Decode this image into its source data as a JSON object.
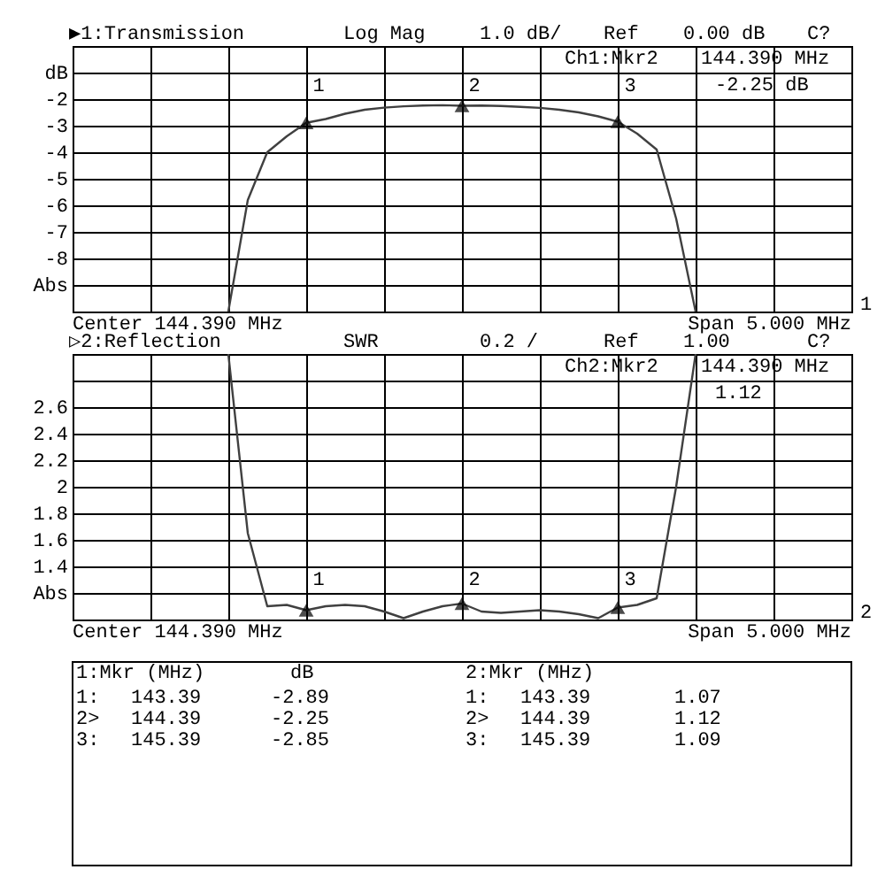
{
  "chart_data": [
    {
      "type": "line",
      "title": "▶1:Transmission",
      "annotations": [
        "Log Mag",
        "1.0 dB/",
        "Ref",
        "0.00 dB",
        "C?",
        "Ch1:Mkr2",
        "144.390 MHz",
        "-2.25 dB",
        "Center 144.390 MHz",
        "Span 5.000 MHz",
        "1"
      ],
      "categories": [
        null,
        null,
        null,
        null,
        null,
        null,
        null,
        null,
        null,
        null,
        null,
        null,
        null,
        null,
        null,
        null,
        null,
        null,
        null,
        null,
        null,
        null,
        null,
        null,
        null,
        null,
        null,
        null,
        null,
        null,
        null,
        null,
        null,
        null,
        null,
        null,
        null,
        null,
        null,
        null,
        null
      ],
      "series": [
        {
          "color": "#404040",
          "values": [
            null,
            null,
            null,
            null,
            null,
            null,
            null,
            null,
            -10,
            -5.8,
            -4.0,
            -3.4,
            -2.89,
            -2.75,
            -2.55,
            -2.4,
            -2.32,
            -2.27,
            -2.24,
            -2.23,
            -2.25,
            -2.24,
            -2.26,
            -2.29,
            -2.33,
            -2.4,
            -2.5,
            -2.65,
            -2.85,
            -3.3,
            -3.9,
            -6.5,
            -10,
            null,
            null,
            null,
            null,
            null,
            null,
            null,
            null
          ]
        },
        {
          "type": "scatter",
          "name": "1",
          "marker": "triangle",
          "color": "#000000",
          "values": [
            null,
            null,
            null,
            null,
            null,
            null,
            null,
            null,
            null,
            null,
            null,
            null,
            -2.89,
            null,
            null,
            null,
            null,
            null,
            null,
            null,
            null,
            null,
            null,
            null,
            null,
            null,
            null,
            null,
            null,
            null,
            null,
            null,
            null,
            null,
            null,
            null,
            null,
            null,
            null,
            null,
            null
          ]
        },
        {
          "type": "scatter",
          "name": "2",
          "marker": "triangle",
          "color": "#000000",
          "values": [
            null,
            null,
            null,
            null,
            null,
            null,
            null,
            null,
            null,
            null,
            null,
            null,
            null,
            null,
            null,
            null,
            null,
            null,
            null,
            null,
            -2.25,
            null,
            null,
            null,
            null,
            null,
            null,
            null,
            null,
            null,
            null,
            null,
            null,
            null,
            null,
            null,
            null,
            null,
            null,
            null,
            null
          ]
        },
        {
          "type": "scatter",
          "name": "3",
          "marker": "triangle",
          "color": "#000000",
          "values": [
            null,
            null,
            null,
            null,
            null,
            null,
            null,
            null,
            null,
            null,
            null,
            null,
            null,
            null,
            null,
            null,
            null,
            null,
            null,
            null,
            null,
            null,
            null,
            null,
            null,
            null,
            null,
            null,
            -2.85,
            null,
            null,
            null,
            null,
            null,
            null,
            null,
            null,
            null,
            null,
            null,
            null
          ]
        }
      ],
      "ylim": [
        -10,
        0
      ],
      "yticks": [
        {
          "value": 0,
          "label": null
        },
        {
          "value": -1,
          "label": "dB"
        },
        -2,
        -3,
        -4,
        -5,
        -6,
        -7,
        -8,
        {
          "value": -9,
          "label": "Abs"
        },
        {
          "value": -10,
          "label": null
        }
      ],
      "tick_labels": "y",
      "grid": true
    },
    {
      "type": "line",
      "title": "▷2:Reflection",
      "annotations": [
        "SWR",
        "0.2 /",
        "Ref",
        "1.00",
        "C?",
        "Ch2:Mkr2",
        "144.390 MHz",
        "1.12",
        "Center 144.390 MHz",
        "Span 5.000 MHz",
        "2"
      ],
      "categories": [
        null,
        null,
        null,
        null,
        null,
        null,
        null,
        null,
        null,
        null,
        null,
        null,
        null,
        null,
        null,
        null,
        null,
        null,
        null,
        null,
        null,
        null,
        null,
        null,
        null,
        null,
        null,
        null,
        null,
        null,
        null,
        null,
        null,
        null,
        null,
        null,
        null,
        null,
        null,
        null,
        null
      ],
      "series": [
        {
          "color": "#404040",
          "values": [
            null,
            null,
            null,
            null,
            null,
            null,
            null,
            null,
            3,
            1.65,
            1.1,
            1.11,
            1.07,
            1.1,
            1.11,
            1.1,
            1.06,
            1.01,
            1.06,
            1.1,
            1.12,
            1.06,
            1.05,
            1.06,
            1.07,
            1.06,
            1.04,
            1.01,
            1.09,
            1.11,
            1.16,
            2.0,
            3,
            null,
            null,
            null,
            null,
            null,
            null,
            null,
            null
          ]
        },
        {
          "type": "scatter",
          "name": "1",
          "marker": "triangle",
          "color": "#000000",
          "values": [
            null,
            null,
            null,
            null,
            null,
            null,
            null,
            null,
            null,
            null,
            null,
            null,
            1.07,
            null,
            null,
            null,
            null,
            null,
            null,
            null,
            null,
            null,
            null,
            null,
            null,
            null,
            null,
            null,
            null,
            null,
            null,
            null,
            null,
            null,
            null,
            null,
            null,
            null,
            null,
            null,
            null
          ]
        },
        {
          "type": "scatter",
          "name": "2",
          "marker": "triangle",
          "color": "#000000",
          "values": [
            null,
            null,
            null,
            null,
            null,
            null,
            null,
            null,
            null,
            null,
            null,
            null,
            null,
            null,
            null,
            null,
            null,
            null,
            null,
            null,
            1.12,
            null,
            null,
            null,
            null,
            null,
            null,
            null,
            null,
            null,
            null,
            null,
            null,
            null,
            null,
            null,
            null,
            null,
            null,
            null,
            null
          ]
        },
        {
          "type": "scatter",
          "name": "3",
          "marker": "triangle",
          "color": "#000000",
          "values": [
            null,
            null,
            null,
            null,
            null,
            null,
            null,
            null,
            null,
            null,
            null,
            null,
            null,
            null,
            null,
            null,
            null,
            null,
            null,
            null,
            null,
            null,
            null,
            null,
            null,
            null,
            null,
            null,
            1.09,
            null,
            null,
            null,
            null,
            null,
            null,
            null,
            null,
            null,
            null,
            null,
            null
          ]
        }
      ],
      "ylim": [
        1,
        3
      ],
      "yticks": [
        {
          "value": 1,
          "label": null
        },
        {
          "value": 1.2,
          "label": "Abs"
        },
        1.4,
        1.6,
        1.8,
        2,
        2.2,
        2.4,
        2.6,
        {
          "value": 2.8,
          "label": null
        },
        {
          "value": 3,
          "label": null
        }
      ],
      "tick_labels": "y",
      "grid": true
    },
    {
      "type": "other",
      "annotations": [
        "1:Mkr (MHz)",
        "dB",
        "1:",
        "143.39",
        "-2.89",
        "2>",
        "144.39",
        "-2.25",
        "3:",
        "145.39",
        "-2.85",
        "2:Mkr (MHz)",
        "1:",
        "143.39",
        "1.07",
        "2>",
        "144.39",
        "1.12",
        "3:",
        "145.39",
        "1.09"
      ]
    }
  ]
}
